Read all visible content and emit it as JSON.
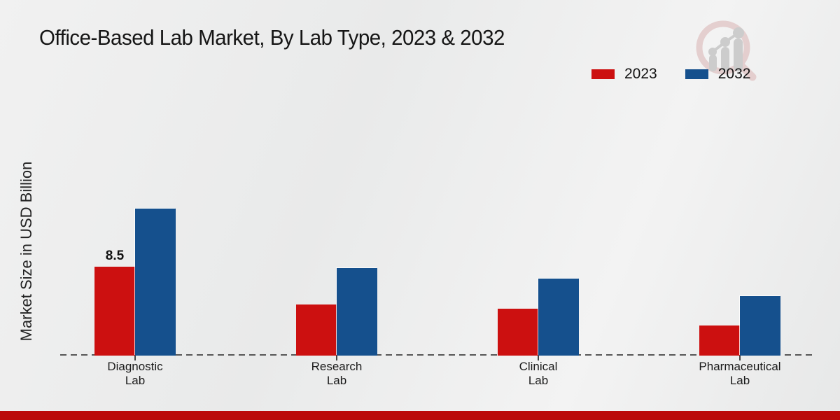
{
  "chart_data": {
    "type": "bar",
    "title": "Office-Based Lab Market, By Lab Type, 2023 & 2032",
    "ylabel": "Market Size in USD Billion",
    "xlabel": "",
    "categories": [
      "Diagnostic Lab",
      "Research Lab",
      "Clinical Lab",
      "Pharmaceutical Lab"
    ],
    "series": [
      {
        "name": "2023",
        "color": "#cc1010",
        "values": [
          8.5,
          4.9,
          4.5,
          2.9
        ]
      },
      {
        "name": "2032",
        "color": "#15508d",
        "values": [
          14.1,
          8.4,
          7.4,
          5.7
        ]
      }
    ],
    "bar_labels": [
      {
        "category_index": 0,
        "series_index": 0,
        "text": "8.5"
      }
    ],
    "legend_position": "top-right",
    "grid": false,
    "baseline_style": "dashed",
    "ylim": [
      0,
      16
    ]
  },
  "watermark": {
    "icon": "magnifier-bar-chart-logo"
  },
  "footer": {
    "stripe_color": "#bb0a0a"
  }
}
